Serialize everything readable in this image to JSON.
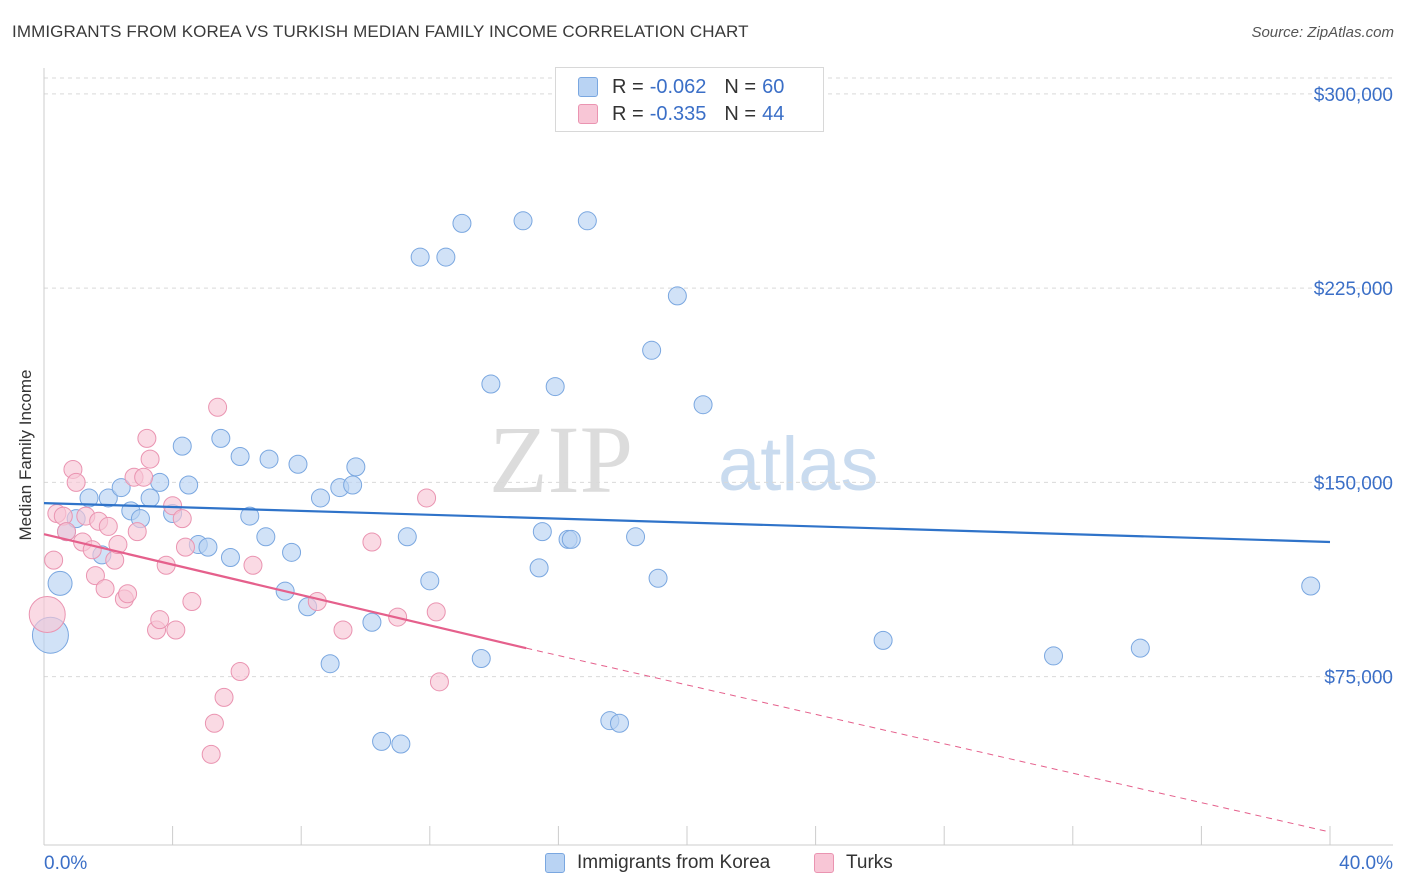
{
  "header": {
    "title": "IMMIGRANTS FROM KOREA VS TURKISH MEDIAN FAMILY INCOME CORRELATION CHART",
    "source": "Source: ZipAtlas.com"
  },
  "watermark": {
    "part1": "ZIP",
    "part2": "atlas"
  },
  "legend": {
    "series1": {
      "r_label": "R =",
      "r_value": "-0.062",
      "n_label": "N =",
      "n_value": "60"
    },
    "series2": {
      "r_label": "R =",
      "r_value": "-0.335",
      "n_label": "N =",
      "n_value": "44"
    }
  },
  "bottom_legend": {
    "series1": "Immigrants from Korea",
    "series2": "Turks"
  },
  "colors": {
    "korea_fill": "#b9d3f3",
    "korea_stroke": "#7aa7e0",
    "korea_line": "#2f73c9",
    "turks_fill": "#f8c6d6",
    "turks_stroke": "#ea94b1",
    "turks_line": "#e5608c",
    "axis_text": "#3b6fc7",
    "grid": "#d9d9d9"
  },
  "chart_data": {
    "type": "scatter",
    "title": "IMMIGRANTS FROM KOREA VS TURKISH MEDIAN FAMILY INCOME CORRELATION CHART",
    "xlabel": "",
    "ylabel": "Median Family Income",
    "xlim": [
      0,
      40
    ],
    "ylim": [
      10000,
      310000
    ],
    "x_tick_labels": [
      "0.0%",
      "40.0%"
    ],
    "y_ticks": [
      75000,
      150000,
      225000,
      300000
    ],
    "y_tick_labels": [
      "$75,000",
      "$150,000",
      "$225,000",
      "$300,000"
    ],
    "grid": true,
    "legend_position": "top-center",
    "series": [
      {
        "name": "Immigrants from Korea",
        "r": -0.062,
        "n": 60,
        "trend": {
          "x": [
            0,
            40
          ],
          "y": [
            142000,
            127000
          ],
          "style": "solid"
        },
        "points": [
          {
            "x": 0.2,
            "y": 91000,
            "size": "large"
          },
          {
            "x": 0.5,
            "y": 111000,
            "size": "medium"
          },
          {
            "x": 0.7,
            "y": 131000
          },
          {
            "x": 1.0,
            "y": 136000
          },
          {
            "x": 1.4,
            "y": 144000
          },
          {
            "x": 1.8,
            "y": 122000
          },
          {
            "x": 2.0,
            "y": 144000
          },
          {
            "x": 2.4,
            "y": 148000
          },
          {
            "x": 2.7,
            "y": 139000
          },
          {
            "x": 3.0,
            "y": 136000
          },
          {
            "x": 3.3,
            "y": 144000
          },
          {
            "x": 3.6,
            "y": 150000
          },
          {
            "x": 4.0,
            "y": 138000
          },
          {
            "x": 4.3,
            "y": 164000
          },
          {
            "x": 4.5,
            "y": 149000
          },
          {
            "x": 4.8,
            "y": 126000
          },
          {
            "x": 5.1,
            "y": 125000
          },
          {
            "x": 5.5,
            "y": 167000
          },
          {
            "x": 5.8,
            "y": 121000
          },
          {
            "x": 6.1,
            "y": 160000
          },
          {
            "x": 6.4,
            "y": 137000
          },
          {
            "x": 6.9,
            "y": 129000
          },
          {
            "x": 7.0,
            "y": 159000
          },
          {
            "x": 7.5,
            "y": 108000
          },
          {
            "x": 7.7,
            "y": 123000
          },
          {
            "x": 7.9,
            "y": 157000
          },
          {
            "x": 8.2,
            "y": 102000
          },
          {
            "x": 8.6,
            "y": 144000
          },
          {
            "x": 8.9,
            "y": 80000
          },
          {
            "x": 9.2,
            "y": 148000
          },
          {
            "x": 9.6,
            "y": 149000
          },
          {
            "x": 9.7,
            "y": 156000
          },
          {
            "x": 10.2,
            "y": 96000
          },
          {
            "x": 10.5,
            "y": 50000
          },
          {
            "x": 11.1,
            "y": 49000
          },
          {
            "x": 11.3,
            "y": 129000
          },
          {
            "x": 11.7,
            "y": 237000
          },
          {
            "x": 12.0,
            "y": 112000
          },
          {
            "x": 12.5,
            "y": 237000
          },
          {
            "x": 13.0,
            "y": 250000
          },
          {
            "x": 13.6,
            "y": 82000
          },
          {
            "x": 13.9,
            "y": 188000
          },
          {
            "x": 14.9,
            "y": 251000
          },
          {
            "x": 15.4,
            "y": 117000
          },
          {
            "x": 15.5,
            "y": 131000
          },
          {
            "x": 15.9,
            "y": 187000
          },
          {
            "x": 16.3,
            "y": 128000
          },
          {
            "x": 16.4,
            "y": 128000
          },
          {
            "x": 16.9,
            "y": 251000
          },
          {
            "x": 17.6,
            "y": 58000
          },
          {
            "x": 17.9,
            "y": 57000
          },
          {
            "x": 18.4,
            "y": 129000
          },
          {
            "x": 18.9,
            "y": 201000
          },
          {
            "x": 19.1,
            "y": 113000
          },
          {
            "x": 19.7,
            "y": 222000
          },
          {
            "x": 20.5,
            "y": 180000
          },
          {
            "x": 26.1,
            "y": 89000
          },
          {
            "x": 31.4,
            "y": 83000
          },
          {
            "x": 34.1,
            "y": 86000
          },
          {
            "x": 39.4,
            "y": 110000
          }
        ]
      },
      {
        "name": "Turks",
        "r": -0.335,
        "n": 44,
        "trend": {
          "x": [
            0,
            15
          ],
          "y": [
            130000,
            86000
          ],
          "style": "solid",
          "extension": {
            "x": [
              15,
              40
            ],
            "y": [
              86000,
              15000
            ],
            "style": "dashed"
          }
        },
        "points": [
          {
            "x": 0.1,
            "y": 99000,
            "size": "large"
          },
          {
            "x": 0.3,
            "y": 120000
          },
          {
            "x": 0.4,
            "y": 138000
          },
          {
            "x": 0.6,
            "y": 137000
          },
          {
            "x": 0.7,
            "y": 131000
          },
          {
            "x": 0.9,
            "y": 155000
          },
          {
            "x": 1.0,
            "y": 150000
          },
          {
            "x": 1.2,
            "y": 127000
          },
          {
            "x": 1.3,
            "y": 137000
          },
          {
            "x": 1.5,
            "y": 124000
          },
          {
            "x": 1.6,
            "y": 114000
          },
          {
            "x": 1.7,
            "y": 135000
          },
          {
            "x": 1.9,
            "y": 109000
          },
          {
            "x": 2.0,
            "y": 133000
          },
          {
            "x": 2.2,
            "y": 120000
          },
          {
            "x": 2.3,
            "y": 126000
          },
          {
            "x": 2.5,
            "y": 105000
          },
          {
            "x": 2.6,
            "y": 107000
          },
          {
            "x": 2.8,
            "y": 152000
          },
          {
            "x": 2.9,
            "y": 131000
          },
          {
            "x": 3.1,
            "y": 152000
          },
          {
            "x": 3.2,
            "y": 167000
          },
          {
            "x": 3.3,
            "y": 159000
          },
          {
            "x": 3.5,
            "y": 93000
          },
          {
            "x": 3.6,
            "y": 97000
          },
          {
            "x": 3.8,
            "y": 118000
          },
          {
            "x": 4.0,
            "y": 141000
          },
          {
            "x": 4.1,
            "y": 93000
          },
          {
            "x": 4.3,
            "y": 136000
          },
          {
            "x": 4.4,
            "y": 125000
          },
          {
            "x": 4.6,
            "y": 104000
          },
          {
            "x": 5.2,
            "y": 45000
          },
          {
            "x": 5.3,
            "y": 57000
          },
          {
            "x": 5.4,
            "y": 179000
          },
          {
            "x": 5.6,
            "y": 67000
          },
          {
            "x": 6.1,
            "y": 77000
          },
          {
            "x": 6.5,
            "y": 118000
          },
          {
            "x": 8.5,
            "y": 104000
          },
          {
            "x": 9.3,
            "y": 93000
          },
          {
            "x": 10.2,
            "y": 127000
          },
          {
            "x": 11.0,
            "y": 98000
          },
          {
            "x": 11.9,
            "y": 144000
          },
          {
            "x": 12.2,
            "y": 100000
          },
          {
            "x": 12.3,
            "y": 73000
          }
        ]
      }
    ]
  }
}
